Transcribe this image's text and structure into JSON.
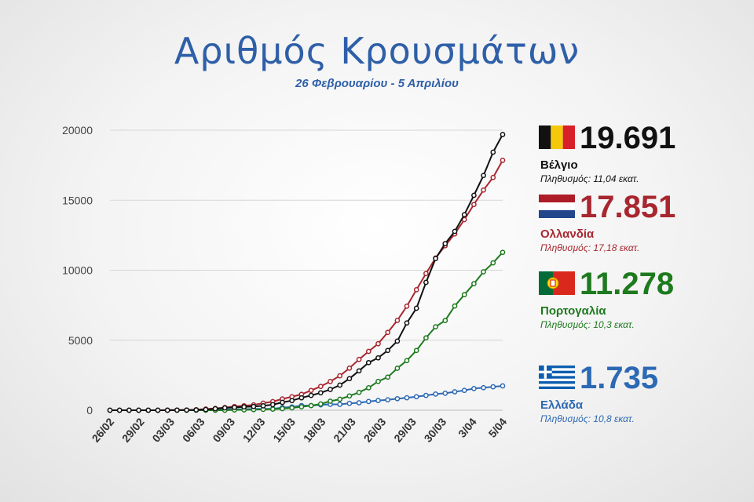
{
  "title": "Αριθμός Κρουσμάτων",
  "subtitle": "26 Φεβρουαρίου - 5 Απριλίου",
  "chart_data": {
    "type": "line",
    "ylim": [
      0,
      20000
    ],
    "yticks": [
      "0",
      "5000",
      "10000",
      "15000",
      "20000"
    ],
    "xtick_labels": [
      "26/02",
      "29/02",
      "03/03",
      "06/03",
      "09/03",
      "12/03",
      "15/03",
      "18/03",
      "21/03",
      "26/03",
      "29/03",
      "30/03",
      "3/04",
      "5/04"
    ],
    "grid": "horizontal",
    "series": [
      {
        "name": "Βέλγιο",
        "color": "#111111",
        "values": [
          0,
          0,
          0,
          0,
          1,
          1,
          2,
          8,
          13,
          23,
          50,
          109,
          169,
          200,
          239,
          267,
          314,
          399,
          559,
          689,
          886,
          1058,
          1243,
          1486,
          1795,
          2257,
          2815,
          3401,
          3743,
          4269,
          4937,
          6235,
          7284,
          9134,
          10836,
          11899,
          12775,
          13964,
          15348,
          16770,
          18431,
          19691
        ]
      },
      {
        "name": "Ολλανδία",
        "color": "#a8262f",
        "values": [
          0,
          0,
          0,
          0,
          1,
          2,
          7,
          13,
          18,
          38,
          82,
          128,
          188,
          265,
          321,
          382,
          503,
          614,
          804,
          959,
          1135,
          1413,
          1705,
          2051,
          2460,
          3003,
          3631,
          4204,
          4749,
          5560,
          6412,
          7431,
          8603,
          9762,
          10866,
          11750,
          12595,
          13614,
          14697,
          15723,
          16627,
          17851
        ]
      },
      {
        "name": "Πορτογαλία",
        "color": "#1e7a1e",
        "values": [
          0,
          0,
          0,
          0,
          0,
          0,
          0,
          0,
          0,
          0,
          0,
          0,
          21,
          30,
          41,
          59,
          78,
          112,
          169,
          245,
          331,
          448,
          642,
          785,
          1020,
          1280,
          1600,
          2060,
          2362,
          2995,
          3544,
          4268,
          5170,
          5962,
          6408,
          7443,
          8251,
          9034,
          9886,
          10524,
          11278
        ]
      },
      {
        "name": "Ελλάδα",
        "color": "#2c69b4",
        "values": [
          0,
          0,
          0,
          1,
          3,
          4,
          7,
          9,
          31,
          45,
          46,
          73,
          73,
          89,
          99,
          99,
          190,
          228,
          331,
          331,
          387,
          418,
          418,
          495,
          530,
          624,
          695,
          743,
          821,
          892,
          966,
          1061,
          1156,
          1212,
          1314,
          1415,
          1544,
          1613,
          1673,
          1735
        ]
      }
    ]
  },
  "legend": [
    {
      "country": "Βέλγιο",
      "cases": "19.691",
      "population": "Πληθυσμός: 11,04 εκατ.",
      "color": "#111111",
      "name_color": "#111111",
      "flag": "belgium-flag"
    },
    {
      "country": "Ολλανδία",
      "cases": "17.851",
      "population": "Πληθυσμός: 17,18 εκατ.",
      "color": "#a8262f",
      "name_color": "#a8262f",
      "flag": "netherlands-flag"
    },
    {
      "country": "Πορτογαλία",
      "cases": "11.278",
      "population": "Πληθυσμός: 10,3 εκατ.",
      "color": "#1e7a1e",
      "name_color": "#1e7a1e",
      "flag": "portugal-flag"
    },
    {
      "country": "Ελλάδα",
      "cases": "1.735",
      "population": "Πληθυσμός: 10,8 εκατ.",
      "color": "#2c69b4",
      "name_color": "#2c69b4",
      "flag": "greece-flag"
    }
  ]
}
